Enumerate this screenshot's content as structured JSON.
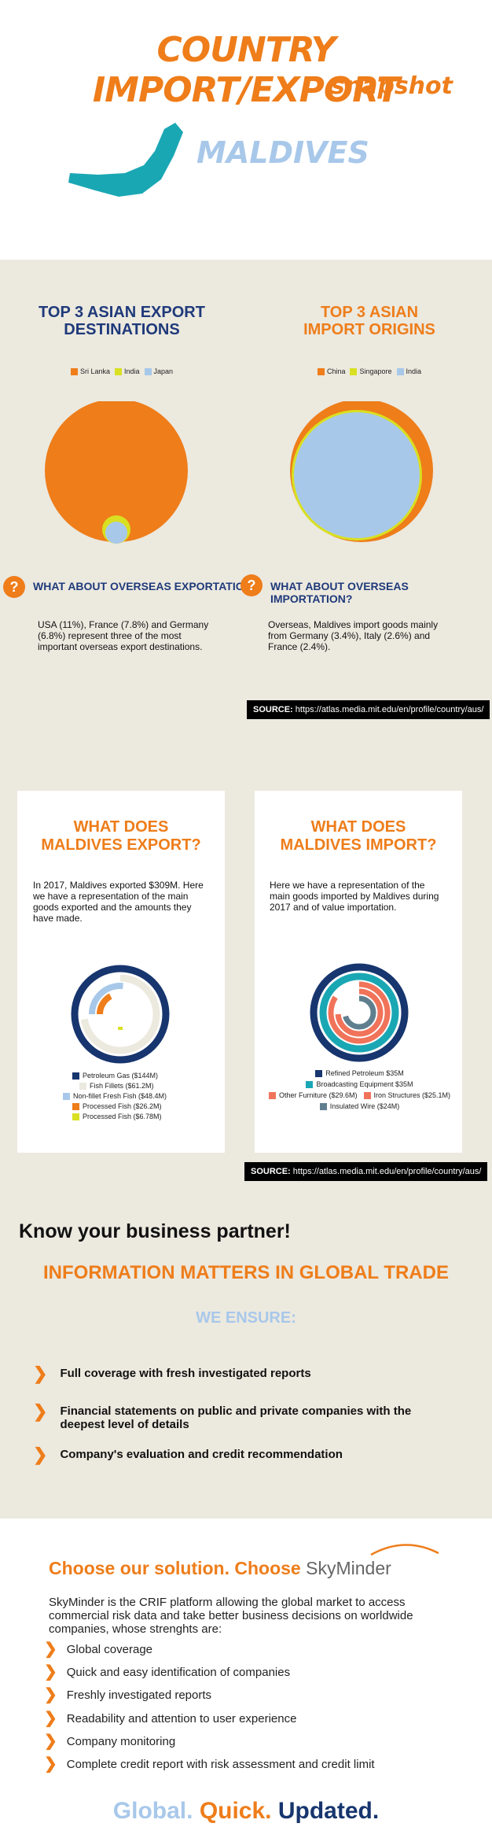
{
  "header": {
    "title": "COUNTRY IMPORT/EXPORT",
    "subtitle": "snapshot",
    "country": "MALDIVES"
  },
  "export_destinations": {
    "title_line1": "TOP 3 ASIAN EXPORT",
    "title_line2": "DESTINATIONS",
    "legend": [
      {
        "label": "Sri Lanka",
        "color": "#ee7d1a"
      },
      {
        "label": "India",
        "color": "#d9e021"
      },
      {
        "label": "Japan",
        "color": "#a8c8ea"
      }
    ]
  },
  "import_origins": {
    "title_line1": "TOP 3 ASIAN",
    "title_line2": "IMPORT ORIGINS",
    "legend": [
      {
        "label": "China",
        "color": "#ee7d1a"
      },
      {
        "label": "Singapore",
        "color": "#d9e021"
      },
      {
        "label": "India",
        "color": "#a8c8ea"
      }
    ]
  },
  "overseas_export": {
    "icon": "?",
    "title": "WHAT ABOUT OVERSEAS EXPORTATION?",
    "text": "USA (11%),  France (7.8%) and Germany (6.8%)  represent three of the most important overseas export destinations."
  },
  "overseas_import": {
    "icon": "?",
    "title": "WHAT ABOUT OVERSEAS IMPORTATION?",
    "text": "Overseas,  Maldives import goods mainly from Germany (3.4%), Italy (2.6%) and France (2.4%)."
  },
  "source1": {
    "label": "SOURCE:",
    "url": "https://atlas.media.mit.edu/en/profile/country/aus/"
  },
  "export_card": {
    "title_line1": "WHAT DOES",
    "title_line2": "MALDIVES EXPORT?",
    "text": "In 2017, Maldives exported $309M. Here we have a representation of the main goods exported and the amounts they have made.",
    "legend": [
      {
        "label": "Petroleum Gas ($144M)",
        "color": "#17356e"
      },
      {
        "label": "Fish Fillets ($61.2M)",
        "color": "#ece9df"
      },
      {
        "label": "Non-fillet Fresh Fish ($48.4M)",
        "color": "#a8c8ea"
      },
      {
        "label": "Processed Fish ($26.2M)",
        "color": "#ee7d1a"
      },
      {
        "label": "Processed Fish ($6.78M)",
        "color": "#d9e021"
      }
    ]
  },
  "import_card": {
    "title_line1": "WHAT DOES",
    "title_line2": "MALDIVES IMPORT?",
    "text": "Here we have a representation of the main goods imported by  Maldives  during 2017 and of value importation.",
    "legend": [
      {
        "label": "Refined Petroleum $35M",
        "color": "#17356e"
      },
      {
        "label": "Broadcasting Equipment $35M",
        "color": "#1aa7b4"
      },
      {
        "label": "Other Furniture ($29.6M)",
        "color": "#f0735a"
      },
      {
        "label": "Iron Structures ($25.1M)",
        "color": "#f0735a"
      },
      {
        "label": "Insulated Wire ($24M)",
        "color": "#5f7f8f"
      }
    ]
  },
  "source2": {
    "label": "SOURCE:",
    "url": "https://atlas.media.mit.edu/en/profile/country/aus/"
  },
  "partner": {
    "heading": "Know your business partner!",
    "subheading": "INFORMATION MATTERS IN GLOBAL TRADE",
    "ensure": "WE ENSURE:",
    "bullets": [
      "Full coverage with fresh investigated reports",
      "Financial statements on public and private companies with the deepest level of details",
      "Company's evaluation and credit recommendation"
    ]
  },
  "solution": {
    "heading": "Choose our solution. Choose",
    "brand": "SkyMinder",
    "description": "SkyMinder is the CRIF platform allowing the global market to access commercial risk data and take better business decisions on worldwide companies, whose strenghts are:",
    "features": [
      "Global coverage",
      "Quick and easy identification of companies",
      "Freshly investigated reports",
      "Readability and attention to user experience",
      "Company monitoring",
      "Complete credit report with risk assessment and credit limit"
    ],
    "tagline_1": "Global.",
    "tagline_2": "Quick.",
    "tagline_3": "Updated.",
    "colors": {
      "global": "#a8c8ea",
      "quick": "#ee7d1a",
      "updated": "#17356e"
    }
  },
  "chart_data": [
    {
      "type": "pie",
      "title": "TOP 3 ASIAN EXPORT DESTINATIONS",
      "categories": [
        "Sri Lanka",
        "India",
        "Japan"
      ],
      "values": [
        94,
        4,
        2
      ]
    },
    {
      "type": "pie",
      "title": "TOP 3 ASIAN IMPORT ORIGINS",
      "categories": [
        "China",
        "Singapore",
        "India"
      ],
      "values": [
        10,
        2,
        88
      ]
    },
    {
      "type": "bar",
      "title": "WHAT DOES MALDIVES EXPORT?",
      "categories": [
        "Petroleum Gas",
        "Fish Fillets",
        "Non-fillet Fresh Fish",
        "Processed Fish",
        "Processed Fish"
      ],
      "values": [
        144,
        61.2,
        48.4,
        26.2,
        6.78
      ]
    },
    {
      "type": "bar",
      "title": "WHAT DOES MALDIVES IMPORT?",
      "categories": [
        "Refined Petroleum",
        "Broadcasting Equipment",
        "Other Furniture",
        "Iron Structures",
        "Insulated Wire"
      ],
      "values": [
        35,
        35,
        29.6,
        25.1,
        24
      ]
    }
  ]
}
